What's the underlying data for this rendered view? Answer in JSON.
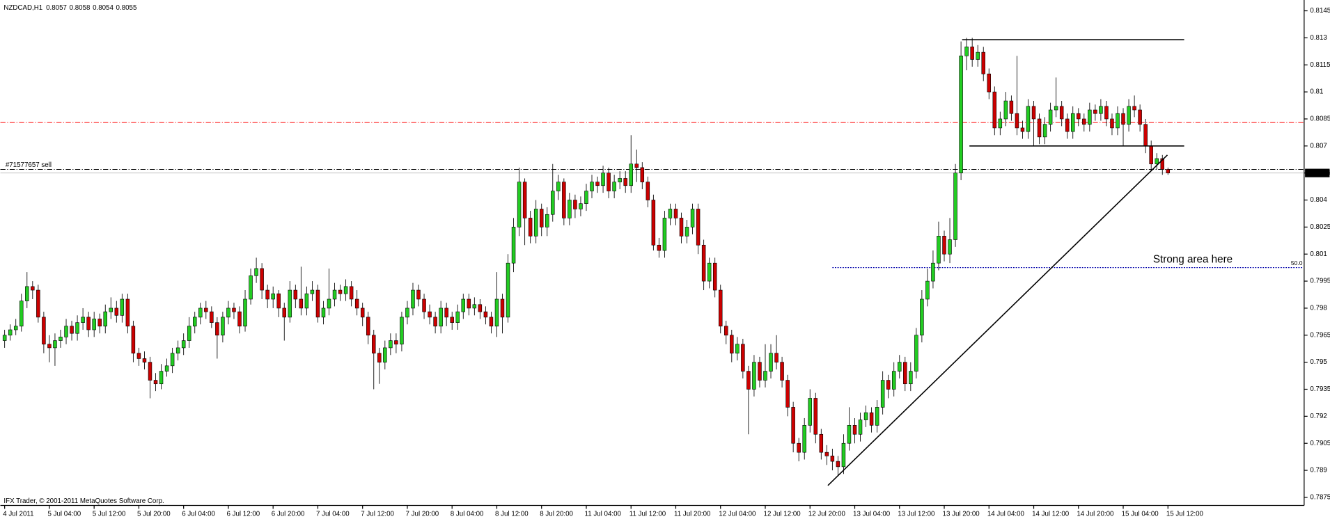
{
  "chart_data": {
    "type": "candlestick",
    "title": "NZDCAD,H1",
    "ylim": [
      0.7871,
      0.8151
    ],
    "yticks": [
      0.8145,
      0.813,
      0.8115,
      0.81,
      0.8085,
      0.807,
      0.8055,
      0.804,
      0.8025,
      0.801,
      0.7995,
      0.798,
      0.7965,
      0.795,
      0.7935,
      0.792,
      0.7905,
      0.789,
      0.7875
    ],
    "xlim": [
      -0.76,
      232.2
    ],
    "xticks": [
      {
        "value": 0,
        "label": "4 Jul 2011"
      },
      {
        "value": 8,
        "label": "5 Jul 04:00"
      },
      {
        "value": 16,
        "label": "5 Jul 12:00"
      },
      {
        "value": 24,
        "label": "5 Jul 20:00"
      },
      {
        "value": 32,
        "label": "6 Jul 04:00"
      },
      {
        "value": 40,
        "label": "6 Jul 12:00"
      },
      {
        "value": 48,
        "label": "6 Jul 20:00"
      },
      {
        "value": 56,
        "label": "7 Jul 04:00"
      },
      {
        "value": 64,
        "label": "7 Jul 12:00"
      },
      {
        "value": 72,
        "label": "7 Jul 20:00"
      },
      {
        "value": 80,
        "label": "8 Jul 04:00"
      },
      {
        "value": 88,
        "label": "8 Jul 12:00"
      },
      {
        "value": 96,
        "label": "8 Jul 20:00"
      },
      {
        "value": 104,
        "label": "11 Jul 04:00"
      },
      {
        "value": 112,
        "label": "11 Jul 12:00"
      },
      {
        "value": 120,
        "label": "11 Jul 20:00"
      },
      {
        "value": 128,
        "label": "12 Jul 04:00"
      },
      {
        "value": 136,
        "label": "12 Jul 12:00"
      },
      {
        "value": 144,
        "label": "12 Jul 20:00"
      },
      {
        "value": 152,
        "label": "13 Jul 04:00"
      },
      {
        "value": 160,
        "label": "13 Jul 12:00"
      },
      {
        "value": 168,
        "label": "13 Jul 20:00"
      },
      {
        "value": 176,
        "label": "14 Jul 04:00"
      },
      {
        "value": 184,
        "label": "14 Jul 12:00"
      },
      {
        "value": 192,
        "label": "14 Jul 20:00"
      },
      {
        "value": 200,
        "label": "15 Jul 04:00"
      },
      {
        "value": 208,
        "label": "15 Jul 12:00"
      }
    ],
    "up_color": "#22cc22",
    "down_color": "#cc0000",
    "ohlc": [
      [
        0.7962,
        0.7968,
        0.7958,
        0.7965
      ],
      [
        0.7965,
        0.7971,
        0.7962,
        0.7968
      ],
      [
        0.7968,
        0.7974,
        0.7965,
        0.797
      ],
      [
        0.797,
        0.7988,
        0.7967,
        0.7984
      ],
      [
        0.7984,
        0.8,
        0.798,
        0.7992
      ],
      [
        0.7992,
        0.7995,
        0.7985,
        0.799
      ],
      [
        0.799,
        0.7993,
        0.7972,
        0.7975
      ],
      [
        0.7975,
        0.7978,
        0.7955,
        0.796
      ],
      [
        0.796,
        0.7965,
        0.795,
        0.7958
      ],
      [
        0.7958,
        0.7966,
        0.7948,
        0.7962
      ],
      [
        0.7962,
        0.7968,
        0.7958,
        0.7964
      ],
      [
        0.7964,
        0.7974,
        0.796,
        0.797
      ],
      [
        0.797,
        0.7973,
        0.7962,
        0.7966
      ],
      [
        0.7966,
        0.7976,
        0.7962,
        0.7972
      ],
      [
        0.7972,
        0.798,
        0.7968,
        0.7975
      ],
      [
        0.7975,
        0.7978,
        0.7964,
        0.7968
      ],
      [
        0.7968,
        0.7978,
        0.7964,
        0.7974
      ],
      [
        0.7974,
        0.7977,
        0.7966,
        0.797
      ],
      [
        0.797,
        0.7982,
        0.7966,
        0.7978
      ],
      [
        0.7978,
        0.7986,
        0.7974,
        0.798
      ],
      [
        0.798,
        0.7984,
        0.7972,
        0.7976
      ],
      [
        0.7976,
        0.7988,
        0.7972,
        0.7985
      ],
      [
        0.7985,
        0.7988,
        0.7966,
        0.797
      ],
      [
        0.797,
        0.7973,
        0.795,
        0.7955
      ],
      [
        0.7955,
        0.7958,
        0.7948,
        0.7952
      ],
      [
        0.7952,
        0.7956,
        0.7946,
        0.795
      ],
      [
        0.795,
        0.7953,
        0.793,
        0.794
      ],
      [
        0.794,
        0.7944,
        0.7934,
        0.7938
      ],
      [
        0.7938,
        0.7949,
        0.7935,
        0.7945
      ],
      [
        0.7945,
        0.7952,
        0.7942,
        0.7948
      ],
      [
        0.7948,
        0.7958,
        0.7944,
        0.7955
      ],
      [
        0.7955,
        0.7962,
        0.7951,
        0.7958
      ],
      [
        0.7958,
        0.7966,
        0.7954,
        0.7962
      ],
      [
        0.7962,
        0.7975,
        0.7958,
        0.797
      ],
      [
        0.797,
        0.7978,
        0.7966,
        0.7975
      ],
      [
        0.7975,
        0.7983,
        0.7971,
        0.798
      ],
      [
        0.798,
        0.7984,
        0.7974,
        0.7978
      ],
      [
        0.7978,
        0.7981,
        0.7969,
        0.7972
      ],
      [
        0.7972,
        0.7975,
        0.7952,
        0.7965
      ],
      [
        0.7965,
        0.7978,
        0.7961,
        0.7975
      ],
      [
        0.7975,
        0.7984,
        0.7971,
        0.798
      ],
      [
        0.798,
        0.7983,
        0.7974,
        0.7978
      ],
      [
        0.7978,
        0.7981,
        0.7966,
        0.797
      ],
      [
        0.797,
        0.799,
        0.7967,
        0.7985
      ],
      [
        0.7985,
        0.8002,
        0.7982,
        0.7998
      ],
      [
        0.7998,
        0.8008,
        0.7994,
        0.8002
      ],
      [
        0.8002,
        0.8005,
        0.7985,
        0.799
      ],
      [
        0.799,
        0.7993,
        0.798,
        0.7985
      ],
      [
        0.7985,
        0.7992,
        0.798,
        0.7988
      ],
      [
        0.7988,
        0.799,
        0.7975,
        0.798
      ],
      [
        0.798,
        0.7983,
        0.7962,
        0.7975
      ],
      [
        0.7975,
        0.7995,
        0.7972,
        0.799
      ],
      [
        0.799,
        0.7993,
        0.798,
        0.7985
      ],
      [
        0.7985,
        0.8003,
        0.7976,
        0.798
      ],
      [
        0.798,
        0.7992,
        0.7976,
        0.7988
      ],
      [
        0.7988,
        0.7995,
        0.7984,
        0.799
      ],
      [
        0.799,
        0.7993,
        0.7972,
        0.7975
      ],
      [
        0.7975,
        0.7984,
        0.7971,
        0.798
      ],
      [
        0.798,
        0.8002,
        0.7976,
        0.7985
      ],
      [
        0.7985,
        0.7994,
        0.7981,
        0.799
      ],
      [
        0.799,
        0.7993,
        0.7984,
        0.7988
      ],
      [
        0.7988,
        0.7996,
        0.7984,
        0.7992
      ],
      [
        0.7992,
        0.7995,
        0.7981,
        0.7985
      ],
      [
        0.7985,
        0.799,
        0.7976,
        0.798
      ],
      [
        0.798,
        0.7983,
        0.797,
        0.7975
      ],
      [
        0.7975,
        0.7978,
        0.796,
        0.7965
      ],
      [
        0.7965,
        0.7968,
        0.7935,
        0.7955
      ],
      [
        0.7955,
        0.7958,
        0.7938,
        0.795
      ],
      [
        0.795,
        0.7962,
        0.7946,
        0.7958
      ],
      [
        0.7958,
        0.7966,
        0.7954,
        0.7962
      ],
      [
        0.7962,
        0.7966,
        0.7955,
        0.796
      ],
      [
        0.796,
        0.7978,
        0.7956,
        0.7975
      ],
      [
        0.7975,
        0.7984,
        0.7971,
        0.798
      ],
      [
        0.798,
        0.7994,
        0.7976,
        0.799
      ],
      [
        0.799,
        0.7993,
        0.7981,
        0.7985
      ],
      [
        0.7985,
        0.7988,
        0.7974,
        0.7978
      ],
      [
        0.7978,
        0.7982,
        0.7971,
        0.7975
      ],
      [
        0.7975,
        0.7978,
        0.7966,
        0.797
      ],
      [
        0.797,
        0.7984,
        0.7966,
        0.798
      ],
      [
        0.798,
        0.7983,
        0.797,
        0.7975
      ],
      [
        0.7975,
        0.7978,
        0.7968,
        0.7972
      ],
      [
        0.7972,
        0.7982,
        0.7968,
        0.7978
      ],
      [
        0.7978,
        0.7988,
        0.7974,
        0.7985
      ],
      [
        0.7985,
        0.7988,
        0.7976,
        0.798
      ],
      [
        0.798,
        0.7986,
        0.7976,
        0.7982
      ],
      [
        0.7982,
        0.7985,
        0.7974,
        0.7978
      ],
      [
        0.7978,
        0.7981,
        0.7971,
        0.7975
      ],
      [
        0.7975,
        0.7978,
        0.7966,
        0.797
      ],
      [
        0.797,
        0.8,
        0.7964,
        0.7985
      ],
      [
        0.7985,
        0.7988,
        0.7966,
        0.7975
      ],
      [
        0.7975,
        0.801,
        0.7972,
        0.8005
      ],
      [
        0.8005,
        0.803,
        0.8,
        0.8025
      ],
      [
        0.8025,
        0.8058,
        0.802,
        0.805
      ],
      [
        0.805,
        0.8052,
        0.8015,
        0.803
      ],
      [
        0.803,
        0.8034,
        0.8016,
        0.802
      ],
      [
        0.802,
        0.804,
        0.8016,
        0.8035
      ],
      [
        0.8035,
        0.8038,
        0.802,
        0.8025
      ],
      [
        0.8025,
        0.8036,
        0.802,
        0.8032
      ],
      [
        0.8032,
        0.806,
        0.8028,
        0.8045
      ],
      [
        0.8045,
        0.8054,
        0.804,
        0.805
      ],
      [
        0.805,
        0.8052,
        0.8026,
        0.803
      ],
      [
        0.803,
        0.8044,
        0.8026,
        0.804
      ],
      [
        0.804,
        0.8043,
        0.803,
        0.8035
      ],
      [
        0.8035,
        0.8042,
        0.8031,
        0.8038
      ],
      [
        0.8038,
        0.8049,
        0.8034,
        0.8045
      ],
      [
        0.8045,
        0.8054,
        0.8041,
        0.805
      ],
      [
        0.805,
        0.8053,
        0.8044,
        0.8048
      ],
      [
        0.8048,
        0.8059,
        0.8044,
        0.8055
      ],
      [
        0.8055,
        0.8058,
        0.8041,
        0.8045
      ],
      [
        0.8045,
        0.8054,
        0.8041,
        0.805
      ],
      [
        0.805,
        0.8056,
        0.8046,
        0.8052
      ],
      [
        0.8052,
        0.8056,
        0.8044,
        0.8048
      ],
      [
        0.8048,
        0.8076,
        0.8044,
        0.806
      ],
      [
        0.806,
        0.8068,
        0.805,
        0.8058
      ],
      [
        0.8058,
        0.8061,
        0.8046,
        0.805
      ],
      [
        0.805,
        0.8053,
        0.8036,
        0.804
      ],
      [
        0.804,
        0.8043,
        0.8012,
        0.8015
      ],
      [
        0.8015,
        0.8019,
        0.8008,
        0.8012
      ],
      [
        0.8012,
        0.8034,
        0.8008,
        0.803
      ],
      [
        0.803,
        0.8038,
        0.8026,
        0.8035
      ],
      [
        0.8035,
        0.8038,
        0.8026,
        0.803
      ],
      [
        0.803,
        0.8033,
        0.8016,
        0.802
      ],
      [
        0.802,
        0.8029,
        0.8016,
        0.8025
      ],
      [
        0.8025,
        0.8038,
        0.8021,
        0.8035
      ],
      [
        0.8035,
        0.8038,
        0.801,
        0.8015
      ],
      [
        0.8015,
        0.8018,
        0.799,
        0.7995
      ],
      [
        0.7995,
        0.8008,
        0.7991,
        0.8005
      ],
      [
        0.8005,
        0.8008,
        0.7986,
        0.799
      ],
      [
        0.799,
        0.7993,
        0.7966,
        0.797
      ],
      [
        0.797,
        0.7973,
        0.796,
        0.7965
      ],
      [
        0.7965,
        0.7968,
        0.795,
        0.7955
      ],
      [
        0.7955,
        0.7964,
        0.7951,
        0.796
      ],
      [
        0.796,
        0.7963,
        0.7941,
        0.7945
      ],
      [
        0.7945,
        0.7948,
        0.791,
        0.7935
      ],
      [
        0.7935,
        0.7954,
        0.7931,
        0.795
      ],
      [
        0.795,
        0.7953,
        0.7936,
        0.794
      ],
      [
        0.794,
        0.796,
        0.7936,
        0.7945
      ],
      [
        0.7945,
        0.796,
        0.7941,
        0.7955
      ],
      [
        0.7955,
        0.7965,
        0.7946,
        0.795
      ],
      [
        0.795,
        0.7953,
        0.7936,
        0.794
      ],
      [
        0.794,
        0.7943,
        0.792,
        0.7925
      ],
      [
        0.7925,
        0.7928,
        0.79,
        0.7905
      ],
      [
        0.7905,
        0.7908,
        0.7895,
        0.79
      ],
      [
        0.79,
        0.7919,
        0.7896,
        0.7915
      ],
      [
        0.7915,
        0.7935,
        0.7911,
        0.793
      ],
      [
        0.793,
        0.7933,
        0.7905,
        0.791
      ],
      [
        0.791,
        0.7913,
        0.7896,
        0.79
      ],
      [
        0.79,
        0.7904,
        0.7893,
        0.7898
      ],
      [
        0.7898,
        0.7902,
        0.789,
        0.7895
      ],
      [
        0.7895,
        0.7898,
        0.7887,
        0.7892
      ],
      [
        0.7892,
        0.791,
        0.7888,
        0.7905
      ],
      [
        0.7905,
        0.7925,
        0.7901,
        0.7915
      ],
      [
        0.7915,
        0.7919,
        0.7905,
        0.791
      ],
      [
        0.791,
        0.7922,
        0.7906,
        0.7918
      ],
      [
        0.7918,
        0.7926,
        0.7914,
        0.7922
      ],
      [
        0.7922,
        0.7925,
        0.7911,
        0.7915
      ],
      [
        0.7915,
        0.7929,
        0.7911,
        0.7925
      ],
      [
        0.7925,
        0.7945,
        0.7921,
        0.794
      ],
      [
        0.794,
        0.7943,
        0.793,
        0.7935
      ],
      [
        0.7935,
        0.795,
        0.7931,
        0.7945
      ],
      [
        0.7945,
        0.7954,
        0.7941,
        0.795
      ],
      [
        0.795,
        0.7953,
        0.7934,
        0.7938
      ],
      [
        0.7938,
        0.795,
        0.7934,
        0.7945
      ],
      [
        0.7945,
        0.7969,
        0.7941,
        0.7965
      ],
      [
        0.7965,
        0.799,
        0.7961,
        0.7985
      ],
      [
        0.7985,
        0.8002,
        0.7981,
        0.7995
      ],
      [
        0.7995,
        0.8012,
        0.7991,
        0.8005
      ],
      [
        0.8005,
        0.8028,
        0.8001,
        0.802
      ],
      [
        0.802,
        0.8023,
        0.8006,
        0.801
      ],
      [
        0.801,
        0.803,
        0.8005,
        0.8018
      ],
      [
        0.8018,
        0.806,
        0.8014,
        0.8055
      ],
      [
        0.8055,
        0.8128,
        0.8051,
        0.812
      ],
      [
        0.812,
        0.813,
        0.8112,
        0.8125
      ],
      [
        0.8125,
        0.813,
        0.8114,
        0.8118
      ],
      [
        0.8118,
        0.8126,
        0.8114,
        0.8122
      ],
      [
        0.8122,
        0.8125,
        0.8106,
        0.811
      ],
      [
        0.811,
        0.8113,
        0.8096,
        0.81
      ],
      [
        0.81,
        0.8103,
        0.8076,
        0.808
      ],
      [
        0.808,
        0.8089,
        0.8076,
        0.8085
      ],
      [
        0.8085,
        0.81,
        0.8081,
        0.8095
      ],
      [
        0.8095,
        0.8098,
        0.8084,
        0.8088
      ],
      [
        0.8088,
        0.812,
        0.8076,
        0.808
      ],
      [
        0.808,
        0.8084,
        0.8074,
        0.8078
      ],
      [
        0.8078,
        0.8096,
        0.8074,
        0.8092
      ],
      [
        0.8092,
        0.8095,
        0.807,
        0.8085
      ],
      [
        0.8085,
        0.8088,
        0.8071,
        0.8075
      ],
      [
        0.8075,
        0.8086,
        0.8071,
        0.8082
      ],
      [
        0.8082,
        0.8094,
        0.8078,
        0.809
      ],
      [
        0.809,
        0.8108,
        0.8086,
        0.8092
      ],
      [
        0.8092,
        0.8095,
        0.8081,
        0.8085
      ],
      [
        0.8085,
        0.8088,
        0.8074,
        0.8078
      ],
      [
        0.8078,
        0.8092,
        0.8074,
        0.8088
      ],
      [
        0.8088,
        0.8091,
        0.8081,
        0.8085
      ],
      [
        0.8085,
        0.8088,
        0.8078,
        0.8082
      ],
      [
        0.8082,
        0.8094,
        0.8078,
        0.809
      ],
      [
        0.809,
        0.8093,
        0.8084,
        0.8088
      ],
      [
        0.8088,
        0.8096,
        0.8084,
        0.8092
      ],
      [
        0.8092,
        0.8095,
        0.8081,
        0.8085
      ],
      [
        0.8085,
        0.8088,
        0.8076,
        0.808
      ],
      [
        0.808,
        0.8092,
        0.8076,
        0.8088
      ],
      [
        0.8088,
        0.8091,
        0.807,
        0.8082
      ],
      [
        0.8082,
        0.8096,
        0.8078,
        0.8092
      ],
      [
        0.8092,
        0.8098,
        0.8086,
        0.809
      ],
      [
        0.809,
        0.8093,
        0.8078,
        0.8082
      ],
      [
        0.8082,
        0.8085,
        0.8066,
        0.807
      ],
      [
        0.807,
        0.8073,
        0.8056,
        0.806
      ],
      [
        0.806,
        0.8066,
        0.8057,
        0.8063
      ],
      [
        0.8063,
        0.8065,
        0.8054,
        0.8057
      ],
      [
        0.8057,
        0.8058,
        0.8054,
        0.8055
      ]
    ],
    "hlines": [
      {
        "value": 0.8083,
        "color": "#ff0000"
      },
      {
        "value": 0.8057,
        "color": "#000000",
        "label": "#71577657 sell"
      },
      {
        "value": 0.8055,
        "color": "#c0c0c0"
      }
    ],
    "fibo": {
      "value": 0.80025,
      "start": 148,
      "color": "#0000aa",
      "label": "50.0"
    },
    "trendlines": [
      {
        "x": [
          147.2,
          207.9
        ],
        "y": [
          0.78816,
          0.8065
        ]
      },
      {
        "x": [
          171.2,
          210.9
        ],
        "y": [
          0.8129,
          0.8129
        ]
      },
      {
        "x": [
          172.5,
          210.9
        ],
        "y": [
          0.807,
          0.807
        ]
      }
    ],
    "annotation": "Strong area here",
    "footer": "IFX Trader, © 2001-2011 MetaQuotes Software Corp."
  }
}
